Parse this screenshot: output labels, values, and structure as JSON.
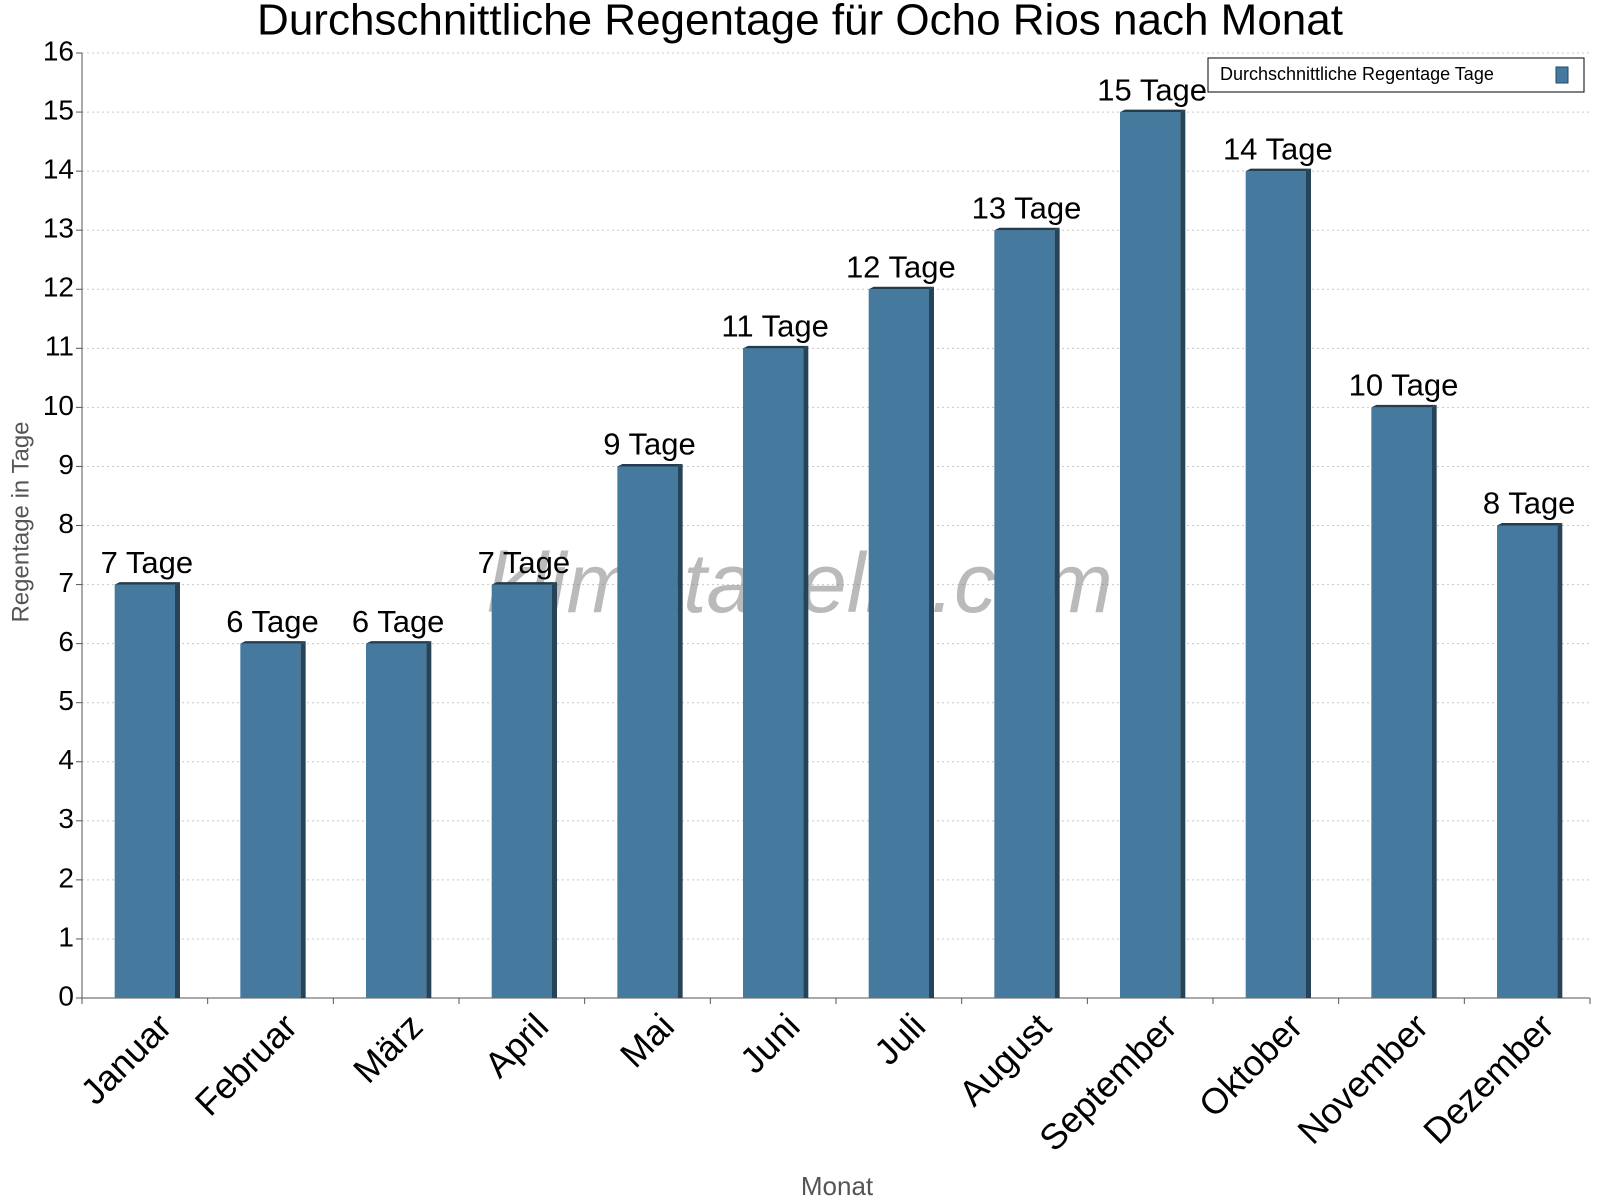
{
  "chart_data": {
    "type": "bar",
    "title": "Durchschnittliche Regentage für Ocho Rios nach Monat",
    "x_label": "Monat",
    "y_label": "Regentage in Tage",
    "watermark": "klimatabelle.com",
    "categories": [
      "Januar",
      "Februar",
      "März",
      "April",
      "Mai",
      "Juni",
      "Juli",
      "August",
      "September",
      "Oktober",
      "November",
      "Dezember"
    ],
    "series": [
      {
        "name": "Durchschnittliche Regentage Tage",
        "color": "#457a9e",
        "values": [
          7,
          6,
          6,
          7,
          9,
          11,
          12,
          13,
          15,
          14,
          10,
          8
        ],
        "value_labels": [
          "7 Tage",
          "6 Tage",
          "6 Tage",
          "7 Tage",
          "9 Tage",
          "11 Tage",
          "12 Tage",
          "13 Tage",
          "15 Tage",
          "14 Tage",
          "10 Tage",
          "8 Tage"
        ]
      }
    ],
    "ylim": [
      0,
      16
    ],
    "yticks": [
      0,
      1,
      2,
      3,
      4,
      5,
      6,
      7,
      8,
      9,
      10,
      11,
      12,
      13,
      14,
      15,
      16
    ],
    "grid": true,
    "legend": "upper right"
  }
}
